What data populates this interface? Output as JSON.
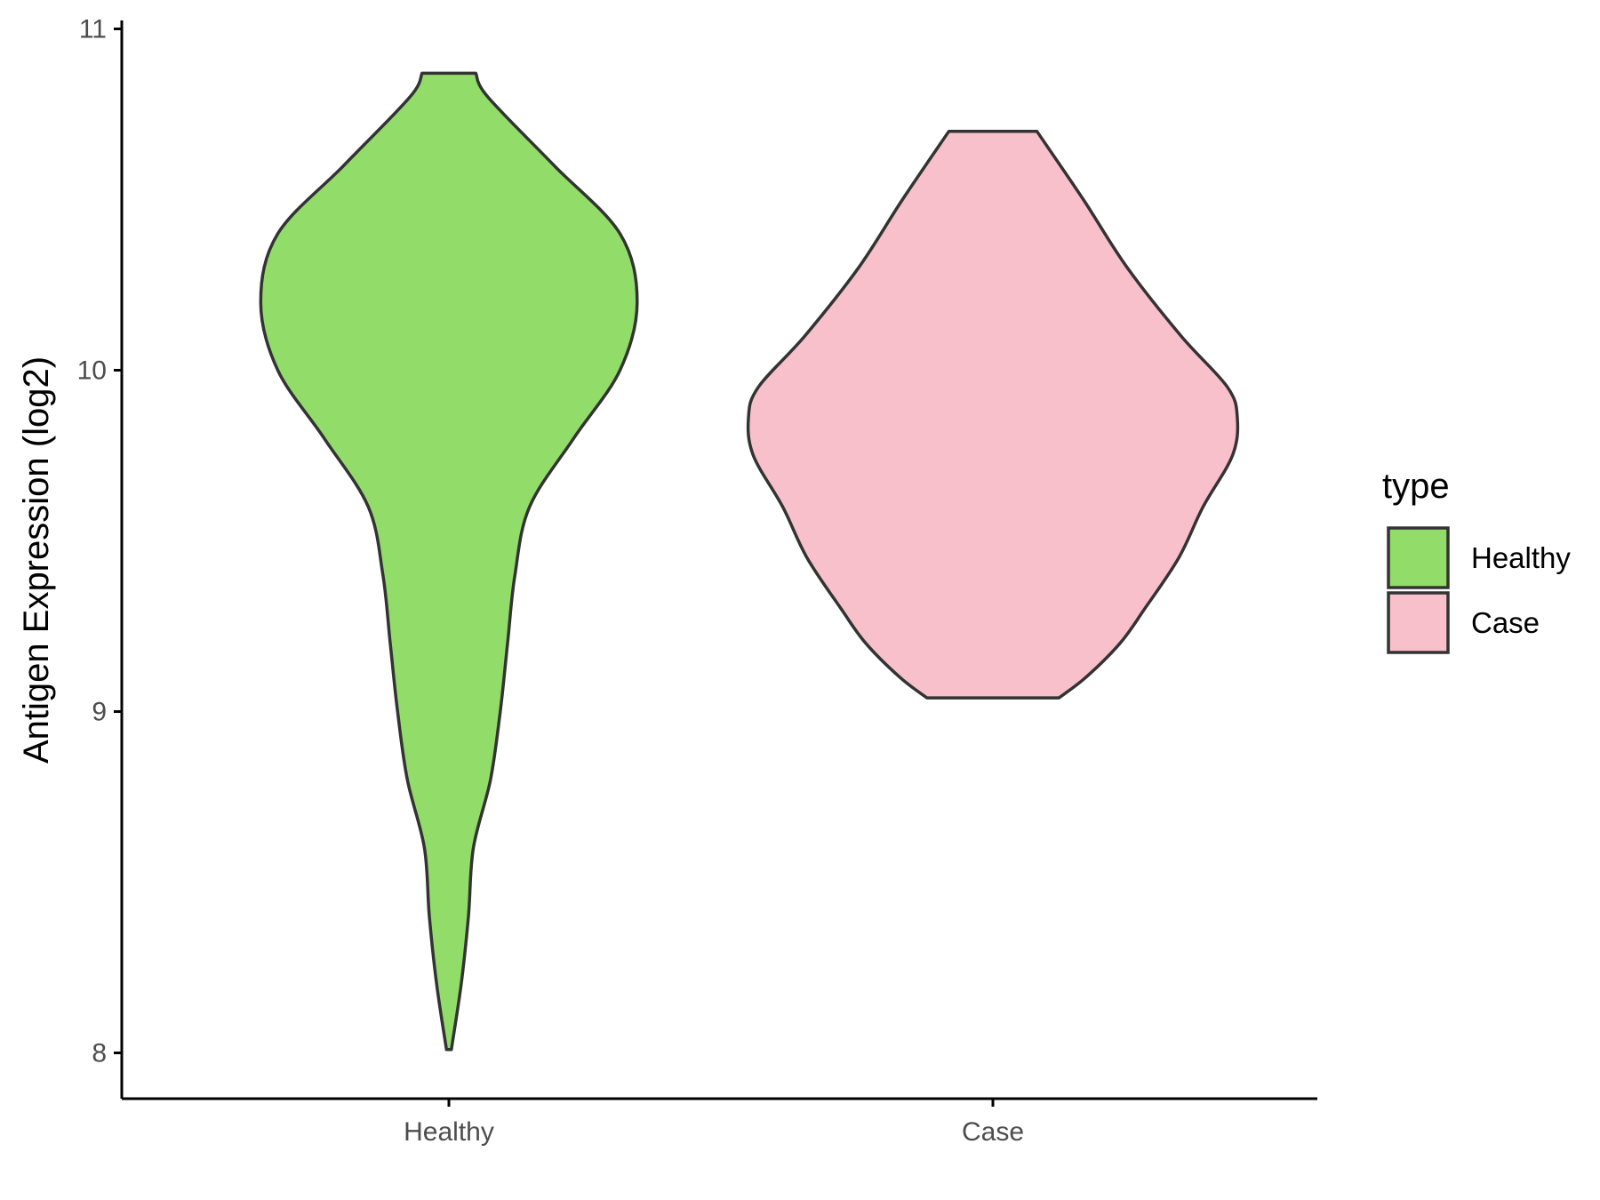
{
  "chart_data": {
    "type": "violin",
    "title": "",
    "xlabel": "",
    "ylabel": "Antigen Expression (log2)",
    "ylim": [
      7.87,
      11.02
    ],
    "y_ticks": [
      8,
      9,
      10,
      11
    ],
    "categories": [
      "Healthy",
      "Case"
    ],
    "grid": false,
    "legend": {
      "title": "type",
      "position": "right",
      "entries": [
        {
          "label": "Healthy",
          "color": "#92DC6A"
        },
        {
          "label": "Case",
          "color": "#F8C0CB"
        }
      ]
    },
    "series": [
      {
        "name": "Healthy",
        "color": "#92DC6A",
        "min": 8.01,
        "max": 10.87,
        "density_profile": [
          [
            8.01,
            0.01
          ],
          [
            8.2,
            0.05
          ],
          [
            8.4,
            0.08
          ],
          [
            8.6,
            0.1
          ],
          [
            8.8,
            0.17
          ],
          [
            9.0,
            0.21
          ],
          [
            9.2,
            0.24
          ],
          [
            9.4,
            0.27
          ],
          [
            9.6,
            0.33
          ],
          [
            9.8,
            0.51
          ],
          [
            10.0,
            0.7
          ],
          [
            10.2,
            0.77
          ],
          [
            10.4,
            0.7
          ],
          [
            10.6,
            0.43
          ],
          [
            10.8,
            0.16
          ],
          [
            10.87,
            0.11
          ]
        ]
      },
      {
        "name": "Case",
        "color": "#F8C0CB",
        "min": 9.04,
        "max": 10.7,
        "density_profile": [
          [
            9.04,
            0.27
          ],
          [
            9.1,
            0.38
          ],
          [
            9.2,
            0.52
          ],
          [
            9.3,
            0.62
          ],
          [
            9.45,
            0.76
          ],
          [
            9.6,
            0.86
          ],
          [
            9.75,
            0.98
          ],
          [
            9.86,
            1.0
          ],
          [
            9.95,
            0.96
          ],
          [
            10.1,
            0.77
          ],
          [
            10.3,
            0.55
          ],
          [
            10.5,
            0.37
          ],
          [
            10.7,
            0.18
          ]
        ]
      }
    ]
  }
}
